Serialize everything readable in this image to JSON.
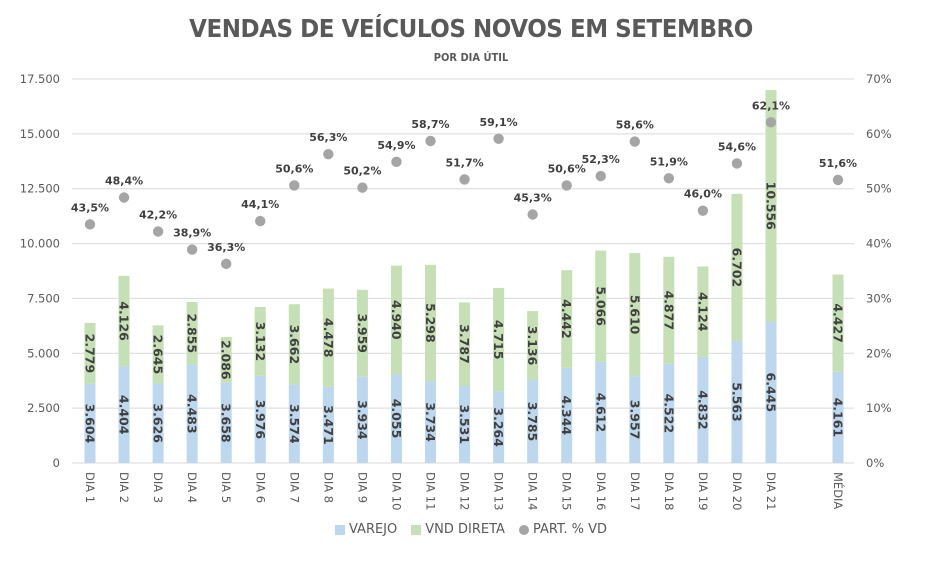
{
  "chart_data": {
    "type": "bar",
    "stacked": true,
    "title": "VENDAS DE VEÍCULOS NOVOS EM SETEMBRO",
    "subtitle": "POR DIA ÚTIL",
    "categories": [
      "DIA 1",
      "DIA 2",
      "DIA 3",
      "DIA 4",
      "DIA 5",
      "DIA 6",
      "DIA 7",
      "DIA 8",
      "DIA 9",
      "DIA 10",
      "DIA 11",
      "DIA 12",
      "DIA 13",
      "DIA 14",
      "DIA 15",
      "DIA 16",
      "DIA 17",
      "DIA 18",
      "DIA 19",
      "DIA 20",
      "DIA 21",
      "MÉDIA"
    ],
    "series": [
      {
        "name": "VAREJO",
        "type": "bar",
        "axis": "left",
        "color": "#bdd7ee",
        "values": [
          3604,
          4404,
          3626,
          4483,
          3658,
          3976,
          3574,
          3471,
          3934,
          4055,
          3734,
          3531,
          3264,
          3785,
          4344,
          4612,
          3957,
          4522,
          4832,
          5563,
          6445,
          4161
        ],
        "labels": [
          "3.604",
          "4.404",
          "3.626",
          "4.483",
          "3.658",
          "3.976",
          "3.574",
          "3.471",
          "3.934",
          "4.055",
          "3.734",
          "3.531",
          "3.264",
          "3.785",
          "4.344",
          "4.612",
          "3.957",
          "4.522",
          "4.832",
          "5.563",
          "6.445",
          "4.161"
        ]
      },
      {
        "name": "VND DIRETA",
        "type": "bar",
        "axis": "left",
        "color": "#c5e0b4",
        "values": [
          2779,
          4126,
          2645,
          2855,
          2086,
          3132,
          3662,
          4478,
          3959,
          4940,
          5298,
          3787,
          4715,
          3136,
          4442,
          5066,
          5610,
          4877,
          4124,
          6702,
          10556,
          4427
        ],
        "labels": [
          "2.779",
          "4.126",
          "2.645",
          "2.855",
          "2.086",
          "3.132",
          "3.662",
          "4.478",
          "3.959",
          "4.940",
          "5.298",
          "3.787",
          "4.715",
          "3.136",
          "4.442",
          "5.066",
          "5.610",
          "4.877",
          "4.124",
          "6.702",
          "10.556",
          "4.427"
        ]
      },
      {
        "name": "PART. % VD",
        "type": "scatter",
        "axis": "right",
        "color": "#a5a5a5",
        "values": [
          43.5,
          48.4,
          42.2,
          38.9,
          36.3,
          44.1,
          50.6,
          56.3,
          50.2,
          54.9,
          58.7,
          51.7,
          59.1,
          45.3,
          50.6,
          52.3,
          58.6,
          51.9,
          46.0,
          54.6,
          62.1,
          51.6
        ],
        "labels": [
          "43,5%",
          "48,4%",
          "42,2%",
          "38,9%",
          "36,3%",
          "44,1%",
          "50,6%",
          "56,3%",
          "50,2%",
          "54,9%",
          "58,7%",
          "51,7%",
          "59,1%",
          "45,3%",
          "50,6%",
          "52,3%",
          "58,6%",
          "51,9%",
          "46,0%",
          "54,6%",
          "62,1%",
          "51,6%"
        ]
      }
    ],
    "yaxis_left": {
      "range": [
        0,
        17500
      ],
      "ticks": [
        0,
        2500,
        5000,
        7500,
        10000,
        12500,
        15000,
        17500
      ],
      "tick_labels": [
        "0",
        "2.500",
        "5.000",
        "7.500",
        "10.000",
        "12.500",
        "15.000",
        "17.500"
      ]
    },
    "yaxis_right": {
      "range": [
        0,
        70
      ],
      "ticks": [
        0,
        10,
        20,
        30,
        40,
        50,
        60,
        70
      ],
      "tick_labels": [
        "0%",
        "10%",
        "20%",
        "30%",
        "40%",
        "50%",
        "60%",
        "70%"
      ]
    },
    "xlabel": "",
    "ylabel": "",
    "grid": true,
    "legend": "bottom",
    "colors": {
      "text": "#595959",
      "label": "#404040",
      "grid": "#d9d9d9"
    }
  }
}
